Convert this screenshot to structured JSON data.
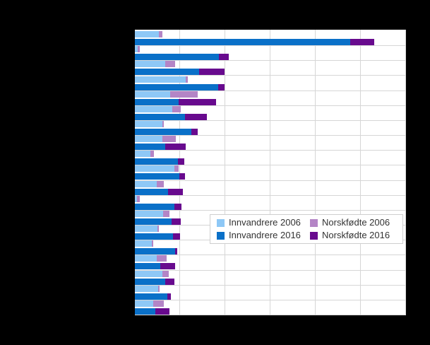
{
  "colors": {
    "background": "#000000",
    "plot_background": "#ffffff",
    "gridline": "#d6d6d6",
    "legend_border": "#cfcfcf",
    "legend_text": "#333333"
  },
  "chart_data": {
    "type": "bar",
    "orientation": "horizontal",
    "stacked": true,
    "grouped_years": true,
    "title": "",
    "xlabel": "",
    "ylabel": "",
    "grid": true,
    "x_axis": {
      "gridline_intervals": 6,
      "tick_labels_visible": false
    },
    "y_axis": {
      "category_count": 19,
      "category_labels_visible": false
    },
    "legend_position": "inside-center-right",
    "units": "percent_of_plot_width",
    "legend": [
      {
        "label": "Innvandrere 2006",
        "color": "#8ec8f6"
      },
      {
        "label": "Norskfødte 2006",
        "color": "#b485c6"
      },
      {
        "label": "Innvandrere 2016",
        "color": "#0a70c8"
      },
      {
        "label": "Norskfødte 2016",
        "color": "#680a8e"
      }
    ],
    "rows": [
      {
        "innvandrere_2006": 8.9,
        "norskfodte_2006": 1.3,
        "innvandrere_2016": 79.4,
        "norskfodte_2016": 8.9
      },
      {
        "innvandrere_2006": 1.0,
        "norskfodte_2006": 0.8,
        "innvandrere_2016": 31.0,
        "norskfodte_2016": 3.6
      },
      {
        "innvandrere_2006": 11.2,
        "norskfodte_2006": 3.6,
        "innvandrere_2016": 23.7,
        "norskfodte_2016": 9.4
      },
      {
        "innvandrere_2006": 18.8,
        "norskfodte_2006": 0.8,
        "innvandrere_2016": 30.7,
        "norskfodte_2016": 2.3
      },
      {
        "innvandrere_2006": 13.0,
        "norskfodte_2006": 10.2,
        "innvandrere_2016": 16.1,
        "norskfodte_2016": 13.8
      },
      {
        "innvandrere_2006": 13.8,
        "norskfodte_2006": 3.1,
        "innvandrere_2016": 18.5,
        "norskfodte_2016": 8.1
      },
      {
        "innvandrere_2006": 10.2,
        "norskfodte_2006": 0.5,
        "innvandrere_2016": 20.8,
        "norskfodte_2016": 2.3
      },
      {
        "innvandrere_2006": 10.2,
        "norskfodte_2006": 4.9,
        "innvandrere_2016": 11.2,
        "norskfodte_2016": 7.6
      },
      {
        "innvandrere_2006": 5.7,
        "norskfodte_2006": 1.3,
        "innvandrere_2016": 15.9,
        "norskfodte_2016": 2.3
      },
      {
        "innvandrere_2006": 14.6,
        "norskfodte_2006": 1.6,
        "innvandrere_2016": 16.4,
        "norskfodte_2016": 2.1
      },
      {
        "innvandrere_2006": 8.1,
        "norskfodte_2006": 2.6,
        "innvandrere_2016": 12.2,
        "norskfodte_2016": 5.5
      },
      {
        "innvandrere_2006": 0.8,
        "norskfodte_2006": 1.0,
        "innvandrere_2016": 14.5,
        "norskfodte_2016": 2.8
      },
      {
        "innvandrere_2006": 10.4,
        "norskfodte_2006": 2.3,
        "innvandrere_2016": 13.5,
        "norskfodte_2016": 3.4
      },
      {
        "innvandrere_2006": 8.3,
        "norskfodte_2006": 0.5,
        "innvandrere_2016": 14.1,
        "norskfodte_2016": 2.6
      },
      {
        "innvandrere_2006": 6.3,
        "norskfodte_2006": 0.5,
        "innvandrere_2016": 14.8,
        "norskfodte_2016": 0.8
      },
      {
        "innvandrere_2006": 8.1,
        "norskfodte_2006": 3.6,
        "innvandrere_2016": 9.4,
        "norskfodte_2016": 5.5
      },
      {
        "innvandrere_2006": 10.2,
        "norskfodte_2006": 2.3,
        "innvandrere_2016": 11.2,
        "norskfodte_2016": 3.4
      },
      {
        "innvandrere_2006": 8.6,
        "norskfodte_2006": 0.5,
        "innvandrere_2016": 12.0,
        "norskfodte_2016": 1.3
      },
      {
        "innvandrere_2006": 6.8,
        "norskfodte_2006": 3.9,
        "innvandrere_2016": 7.6,
        "norskfodte_2016": 5.2
      }
    ]
  }
}
